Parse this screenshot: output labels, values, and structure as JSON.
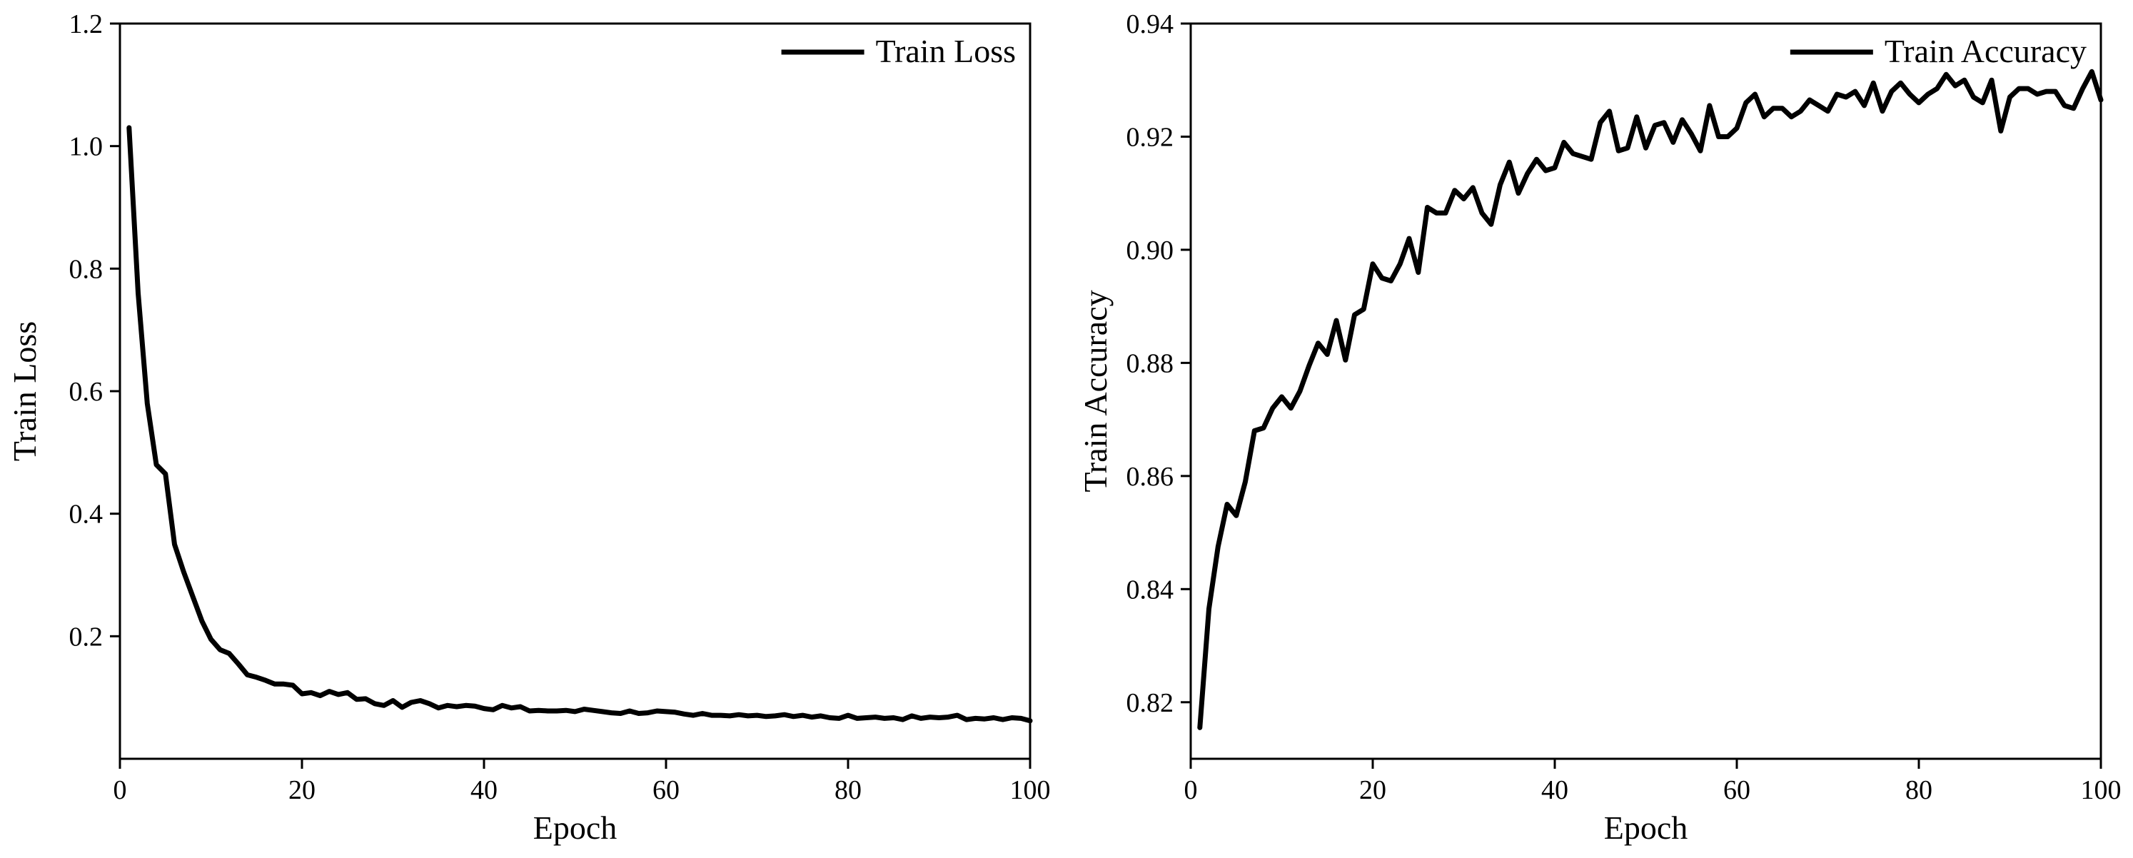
{
  "chart_data": [
    {
      "type": "line",
      "xlabel": "Epoch",
      "ylabel": "Train Loss",
      "xlim": [
        0,
        100
      ],
      "ylim": [
        0,
        1.2
      ],
      "xticks": [
        "0",
        "20",
        "40",
        "60",
        "80",
        "100"
      ],
      "yticks": [
        "0.2",
        "0.4",
        "0.6",
        "0.8",
        "1.0",
        "1.2"
      ],
      "grid": false,
      "legend_position": "top-right",
      "series": [
        {
          "name": "Train Loss",
          "color": "#000000",
          "x": [
            1,
            2,
            3,
            4,
            5,
            6,
            7,
            8,
            9,
            10,
            11,
            12,
            13,
            14,
            15,
            16,
            17,
            18,
            19,
            20,
            21,
            22,
            23,
            24,
            25,
            26,
            27,
            28,
            29,
            30,
            31,
            32,
            33,
            34,
            35,
            36,
            37,
            38,
            39,
            40,
            41,
            42,
            43,
            44,
            45,
            46,
            47,
            48,
            49,
            50,
            51,
            52,
            53,
            54,
            55,
            56,
            57,
            58,
            59,
            60,
            61,
            62,
            63,
            64,
            65,
            66,
            67,
            68,
            69,
            70,
            71,
            72,
            73,
            74,
            75,
            76,
            77,
            78,
            79,
            80,
            81,
            82,
            83,
            84,
            85,
            86,
            87,
            88,
            89,
            90,
            91,
            92,
            93,
            94,
            95,
            96,
            97,
            98,
            99,
            100
          ],
          "values": [
            1.03,
            0.76,
            0.58,
            0.48,
            0.465,
            0.35,
            0.305,
            0.265,
            0.225,
            0.195,
            0.178,
            0.172,
            0.155,
            0.137,
            0.133,
            0.128,
            0.122,
            0.122,
            0.12,
            0.106,
            0.108,
            0.103,
            0.11,
            0.105,
            0.108,
            0.097,
            0.098,
            0.09,
            0.087,
            0.095,
            0.084,
            0.092,
            0.095,
            0.09,
            0.083,
            0.087,
            0.085,
            0.087,
            0.086,
            0.082,
            0.08,
            0.087,
            0.083,
            0.085,
            0.078,
            0.079,
            0.078,
            0.078,
            0.079,
            0.077,
            0.081,
            0.079,
            0.077,
            0.075,
            0.074,
            0.078,
            0.074,
            0.075,
            0.078,
            0.077,
            0.076,
            0.073,
            0.071,
            0.074,
            0.071,
            0.071,
            0.07,
            0.072,
            0.07,
            0.071,
            0.069,
            0.07,
            0.072,
            0.069,
            0.071,
            0.068,
            0.07,
            0.067,
            0.066,
            0.071,
            0.066,
            0.067,
            0.068,
            0.066,
            0.067,
            0.064,
            0.07,
            0.066,
            0.068,
            0.067,
            0.068,
            0.071,
            0.064,
            0.066,
            0.065,
            0.067,
            0.064,
            0.067,
            0.066,
            0.062
          ]
        }
      ]
    },
    {
      "type": "line",
      "xlabel": "Epoch",
      "ylabel": "Train Accuracy",
      "xlim": [
        0,
        100
      ],
      "ylim": [
        0.81,
        0.94
      ],
      "xticks": [
        "0",
        "20",
        "40",
        "60",
        "80",
        "100"
      ],
      "yticks": [
        "0.82",
        "0.84",
        "0.86",
        "0.88",
        "0.90",
        "0.92",
        "0.94"
      ],
      "grid": false,
      "legend_position": "top-right",
      "series": [
        {
          "name": "Train Accuracy",
          "color": "#000000",
          "x": [
            1,
            2,
            3,
            4,
            5,
            6,
            7,
            8,
            9,
            10,
            11,
            12,
            13,
            14,
            15,
            16,
            17,
            18,
            19,
            20,
            21,
            22,
            23,
            24,
            25,
            26,
            27,
            28,
            29,
            30,
            31,
            32,
            33,
            34,
            35,
            36,
            37,
            38,
            39,
            40,
            41,
            42,
            43,
            44,
            45,
            46,
            47,
            48,
            49,
            50,
            51,
            52,
            53,
            54,
            55,
            56,
            57,
            58,
            59,
            60,
            61,
            62,
            63,
            64,
            65,
            66,
            67,
            68,
            69,
            70,
            71,
            72,
            73,
            74,
            75,
            76,
            77,
            78,
            79,
            80,
            81,
            82,
            83,
            84,
            85,
            86,
            87,
            88,
            89,
            90,
            91,
            92,
            93,
            94,
            95,
            96,
            97,
            98,
            99,
            100
          ],
          "values": [
            0.8155,
            0.8365,
            0.8475,
            0.855,
            0.853,
            0.859,
            0.868,
            0.8685,
            0.872,
            0.874,
            0.872,
            0.875,
            0.8795,
            0.8835,
            0.8815,
            0.8875,
            0.8805,
            0.8885,
            0.8895,
            0.8975,
            0.895,
            0.8945,
            0.8975,
            0.902,
            0.896,
            0.9075,
            0.9065,
            0.9065,
            0.9105,
            0.909,
            0.911,
            0.9065,
            0.9045,
            0.9115,
            0.9155,
            0.91,
            0.9135,
            0.916,
            0.914,
            0.9145,
            0.919,
            0.917,
            0.9165,
            0.916,
            0.9225,
            0.9245,
            0.9175,
            0.918,
            0.9235,
            0.918,
            0.922,
            0.9225,
            0.919,
            0.923,
            0.9205,
            0.9175,
            0.9255,
            0.92,
            0.92,
            0.9215,
            0.926,
            0.9275,
            0.9235,
            0.925,
            0.925,
            0.9235,
            0.9245,
            0.9265,
            0.9255,
            0.9245,
            0.9275,
            0.927,
            0.928,
            0.9255,
            0.9295,
            0.9245,
            0.928,
            0.9295,
            0.9275,
            0.926,
            0.9275,
            0.9285,
            0.931,
            0.929,
            0.93,
            0.927,
            0.926,
            0.93,
            0.921,
            0.927,
            0.9285,
            0.9285,
            0.9275,
            0.928,
            0.928,
            0.9255,
            0.925,
            0.9285,
            0.9315,
            0.9265
          ]
        }
      ]
    }
  ]
}
